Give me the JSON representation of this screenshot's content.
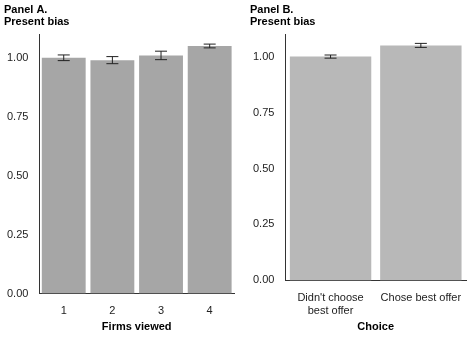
{
  "chart_data": [
    {
      "type": "bar",
      "title": [
        "Panel A.",
        "Present bias"
      ],
      "categories": [
        "1",
        "2",
        "3",
        "4"
      ],
      "values": [
        1.0,
        0.99,
        1.01,
        1.05
      ],
      "errors": [
        0.012,
        0.015,
        0.018,
        0.008
      ],
      "x_label": "Firms viewed",
      "color": "#a6a6a6",
      "ylim": [
        0,
        1.1
      ],
      "yticks": [
        {
          "value": 0,
          "label": "0.00"
        },
        {
          "value": 0.25,
          "label": "0.25"
        },
        {
          "value": 0.5,
          "label": "0.50"
        },
        {
          "value": 0.75,
          "label": "0.75"
        },
        {
          "value": 1,
          "label": "1.00"
        }
      ],
      "grid": false
    },
    {
      "type": "bar",
      "title": [
        "Panel B.",
        "Present bias"
      ],
      "categories": [
        "Didn't choose best offer",
        "Chose best offer"
      ],
      "values": [
        1.0,
        1.05
      ],
      "errors": [
        0.007,
        0.009
      ],
      "x_label": "Choice",
      "color": "#b8b8b8",
      "ylim": [
        0,
        1.1
      ],
      "yticks": [
        {
          "value": 0,
          "label": "0.00"
        },
        {
          "value": 0.25,
          "label": "0.25"
        },
        {
          "value": 0.5,
          "label": "0.50"
        },
        {
          "value": 0.75,
          "label": "0.75"
        },
        {
          "value": 1,
          "label": "1.00"
        }
      ],
      "grid": false
    }
  ]
}
